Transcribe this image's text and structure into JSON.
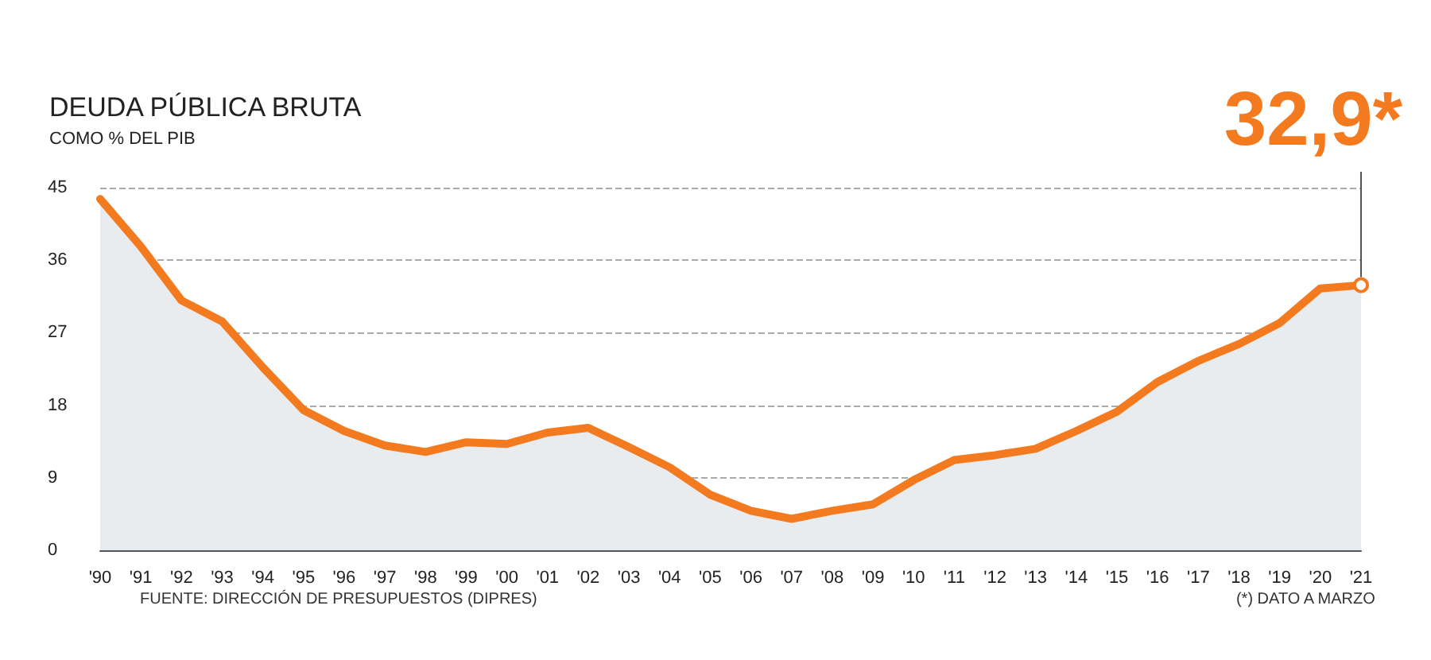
{
  "chart_data": {
    "type": "area",
    "title": "DEUDA PÚBLICA BRUTA",
    "subtitle": "COMO % DEL PIB",
    "categories": [
      "'90",
      "'91",
      "'92",
      "'93",
      "'94",
      "'95",
      "'96",
      "'97",
      "'98",
      "'99",
      "'00",
      "'01",
      "'02",
      "'03",
      "'04",
      "'05",
      "'06",
      "'07",
      "'08",
      "'09",
      "'10",
      "'11",
      "'12",
      "'13",
      "'14",
      "'15",
      "'16",
      "'17",
      "'18",
      "'19",
      "'20",
      "'21"
    ],
    "series": [
      {
        "color": "#f47a20",
        "values": [
          43.6,
          37.7,
          31.0,
          28.4,
          22.7,
          17.4,
          14.8,
          13.0,
          12.2,
          13.4,
          13.2,
          14.6,
          15.2,
          12.8,
          10.3,
          6.9,
          4.9,
          3.9,
          4.9,
          5.7,
          8.7,
          11.2,
          11.8,
          12.6,
          14.8,
          17.2,
          20.9,
          23.5,
          25.6,
          28.2,
          32.5,
          32.9
        ]
      }
    ],
    "ylim": [
      0,
      45
    ],
    "yticks": [
      0,
      9,
      18,
      27,
      36,
      45
    ],
    "grid": "y",
    "marker": "none",
    "line_style": "solid",
    "annotations": [
      {
        "text": "32,9*",
        "x": "'21",
        "y": 32.9
      },
      "FUENTE: DIRECCIÓN DE PRESUPUESTOS (DIPRES)",
      "(*) DATO A MARZO"
    ]
  }
}
